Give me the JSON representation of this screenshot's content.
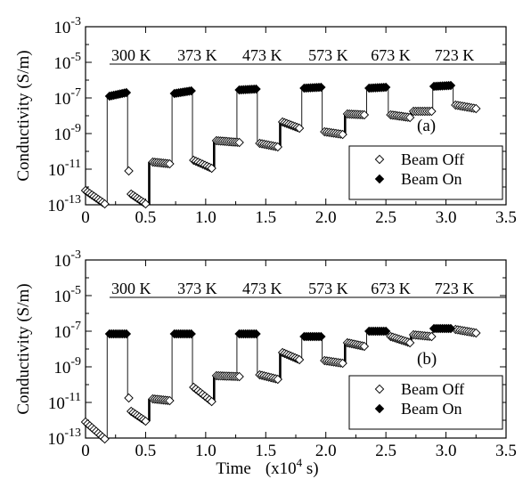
{
  "colors": {
    "axis": "#000000",
    "marker_off_fill": "#ffffff",
    "marker_on_fill": "#000000"
  },
  "chart_data": [
    {
      "type": "scatter",
      "panel_label": "(a)",
      "xlim": [
        0,
        3.5
      ],
      "ylim": [
        -13,
        -3
      ],
      "y_scale": "log",
      "x_ticks": [
        "0",
        "0.5",
        "1.0",
        "1.5",
        "2.0",
        "2.5",
        "3.0",
        "3.5"
      ],
      "y_ticks": [
        {
          "mant": "10",
          "exp": "-3"
        },
        {
          "mant": "10",
          "exp": "-5"
        },
        {
          "mant": "10",
          "exp": "-7"
        },
        {
          "mant": "10",
          "exp": "-9"
        },
        {
          "mant": "10",
          "exp": "-11"
        },
        {
          "mant": "10",
          "exp": "-13"
        }
      ],
      "ylabel": "Conductivity   (S/m)",
      "grid": false,
      "temperature_line": -5.1,
      "temperatures": [
        {
          "label": "300 K",
          "x": 0.38
        },
        {
          "label": "373 K",
          "x": 0.93
        },
        {
          "label": "473 K",
          "x": 1.47
        },
        {
          "label": "573 K",
          "x": 2.02
        },
        {
          "label": "673 K",
          "x": 2.54
        },
        {
          "label": "723 K",
          "x": 3.07
        }
      ],
      "legend": {
        "placement": "bottom-right",
        "entries": [
          {
            "label": "Beam Off",
            "marker": "open-diamond"
          },
          {
            "label": "Beam On",
            "marker": "filled-diamond"
          }
        ]
      },
      "series": [
        {
          "name": "Beam Off",
          "marker": "open-diamond",
          "segments": [
            {
              "x0": 0.0,
              "x1": 0.16,
              "y0": -12.2,
              "y1": -12.95
            },
            {
              "x0": 0.36,
              "x1": 0.36,
              "y0": -11.1,
              "y1": -11.1
            },
            {
              "x0": 0.38,
              "x1": 0.5,
              "y0": -12.4,
              "y1": -12.95
            },
            {
              "x0": 0.56,
              "x1": 0.7,
              "y0": -10.6,
              "y1": -10.7
            },
            {
              "x0": 0.9,
              "x1": 1.05,
              "y0": -10.5,
              "y1": -10.95
            },
            {
              "x0": 1.09,
              "x1": 1.28,
              "y0": -9.4,
              "y1": -9.5
            },
            {
              "x0": 1.45,
              "x1": 1.6,
              "y0": -9.55,
              "y1": -9.75
            },
            {
              "x0": 1.64,
              "x1": 1.78,
              "y0": -8.35,
              "y1": -8.7
            },
            {
              "x0": 1.99,
              "x1": 2.14,
              "y0": -8.9,
              "y1": -9.05
            },
            {
              "x0": 2.18,
              "x1": 2.32,
              "y0": -7.9,
              "y1": -7.95
            },
            {
              "x0": 2.54,
              "x1": 2.7,
              "y0": -7.95,
              "y1": -8.1
            },
            {
              "x0": 2.73,
              "x1": 2.88,
              "y0": -7.75,
              "y1": -7.75
            },
            {
              "x0": 3.08,
              "x1": 3.25,
              "y0": -7.4,
              "y1": -7.6
            }
          ]
        },
        {
          "name": "Beam On",
          "marker": "filled-diamond",
          "segments": [
            {
              "x0": 0.2,
              "x1": 0.34,
              "y0": -6.9,
              "y1": -6.7
            },
            {
              "x0": 0.74,
              "x1": 0.88,
              "y0": -6.75,
              "y1": -6.6
            },
            {
              "x0": 1.28,
              "x1": 1.42,
              "y0": -6.55,
              "y1": -6.5
            },
            {
              "x0": 1.82,
              "x1": 1.96,
              "y0": -6.45,
              "y1": -6.4
            },
            {
              "x0": 2.36,
              "x1": 2.5,
              "y0": -6.45,
              "y1": -6.4
            },
            {
              "x0": 2.9,
              "x1": 3.04,
              "y0": -6.35,
              "y1": -6.3
            }
          ]
        }
      ],
      "connectors": [
        {
          "x": 0.18,
          "y0": -13.0,
          "y1": -6.9,
          "w": 0.9
        },
        {
          "x": 0.35,
          "y0": -6.7,
          "y1": -11.1,
          "w": 0.9
        },
        {
          "x": 0.53,
          "y0": -13.0,
          "y1": -10.6,
          "w": 2.6
        },
        {
          "x": 0.72,
          "y0": -10.7,
          "y1": -6.75,
          "w": 0.9
        },
        {
          "x": 0.89,
          "y0": -6.6,
          "y1": -10.5,
          "w": 0.9
        },
        {
          "x": 1.07,
          "y0": -11.0,
          "y1": -9.4,
          "w": 2.6
        },
        {
          "x": 1.26,
          "y0": -9.5,
          "y1": -6.55,
          "w": 0.9
        },
        {
          "x": 1.43,
          "y0": -6.5,
          "y1": -9.55,
          "w": 0.9
        },
        {
          "x": 1.62,
          "y0": -9.75,
          "y1": -8.35,
          "w": 2.6
        },
        {
          "x": 1.8,
          "y0": -8.7,
          "y1": -6.45,
          "w": 0.9
        },
        {
          "x": 1.97,
          "y0": -6.4,
          "y1": -8.9,
          "w": 0.9
        },
        {
          "x": 2.16,
          "y0": -9.05,
          "y1": -7.9,
          "w": 2.6
        },
        {
          "x": 2.34,
          "y0": -7.95,
          "y1": -6.45,
          "w": 0.9
        },
        {
          "x": 2.52,
          "y0": -6.4,
          "y1": -7.95,
          "w": 0.9
        },
        {
          "x": 2.71,
          "y0": -8.1,
          "y1": -7.75,
          "w": 2.6
        },
        {
          "x": 2.89,
          "y0": -7.75,
          "y1": -6.35,
          "w": 0.9
        },
        {
          "x": 3.06,
          "y0": -6.3,
          "y1": -7.4,
          "w": 0.9
        }
      ]
    },
    {
      "type": "scatter",
      "panel_label": "(b)",
      "xlim": [
        0,
        3.5
      ],
      "ylim": [
        -13,
        -3
      ],
      "y_scale": "log",
      "x_ticks": [
        "0",
        "0.5",
        "1.0",
        "1.5",
        "2.0",
        "2.5",
        "3.0",
        "3.5"
      ],
      "y_ticks": [
        {
          "mant": "10",
          "exp": "-3"
        },
        {
          "mant": "10",
          "exp": "-5"
        },
        {
          "mant": "10",
          "exp": "-7"
        },
        {
          "mant": "10",
          "exp": "-9"
        },
        {
          "mant": "10",
          "exp": "-11"
        },
        {
          "mant": "10",
          "exp": "-13"
        }
      ],
      "ylabel": "Conductivity   (S/m)",
      "xlabel": "Time",
      "xlabel_unit": "(x10",
      "xlabel_unit_exp": "4",
      "xlabel_unit_end": " s)",
      "grid": false,
      "temperature_line": -5.1,
      "temperatures": [
        {
          "label": "300 K",
          "x": 0.38
        },
        {
          "label": "373 K",
          "x": 0.93
        },
        {
          "label": "473 K",
          "x": 1.47
        },
        {
          "label": "573 K",
          "x": 2.02
        },
        {
          "label": "673 K",
          "x": 2.54
        },
        {
          "label": "723 K",
          "x": 3.07
        }
      ],
      "legend": {
        "placement": "bottom-right",
        "entries": [
          {
            "label": "Beam Off",
            "marker": "open-diamond"
          },
          {
            "label": "Beam On",
            "marker": "filled-diamond"
          }
        ]
      },
      "series": [
        {
          "name": "Beam Off",
          "marker": "open-diamond",
          "segments": [
            {
              "x0": 0.0,
              "x1": 0.16,
              "y0": -12.1,
              "y1": -13.05
            },
            {
              "x0": 0.36,
              "x1": 0.36,
              "y0": -10.75,
              "y1": -10.75
            },
            {
              "x0": 0.38,
              "x1": 0.5,
              "y0": -11.5,
              "y1": -12.05
            },
            {
              "x0": 0.56,
              "x1": 0.7,
              "y0": -10.8,
              "y1": -10.9
            },
            {
              "x0": 0.9,
              "x1": 1.05,
              "y0": -10.15,
              "y1": -10.95
            },
            {
              "x0": 1.09,
              "x1": 1.28,
              "y0": -9.5,
              "y1": -9.55
            },
            {
              "x0": 1.45,
              "x1": 1.6,
              "y0": -9.45,
              "y1": -9.7
            },
            {
              "x0": 1.64,
              "x1": 1.78,
              "y0": -8.2,
              "y1": -8.6
            },
            {
              "x0": 1.99,
              "x1": 2.14,
              "y0": -8.65,
              "y1": -8.8
            },
            {
              "x0": 2.18,
              "x1": 2.32,
              "y0": -7.65,
              "y1": -7.85
            },
            {
              "x0": 2.54,
              "x1": 2.7,
              "y0": -7.3,
              "y1": -7.65
            },
            {
              "x0": 2.73,
              "x1": 2.88,
              "y0": -7.2,
              "y1": -7.3
            },
            {
              "x0": 3.08,
              "x1": 3.25,
              "y0": -6.9,
              "y1": -7.1
            }
          ]
        },
        {
          "name": "Beam On",
          "marker": "filled-diamond",
          "segments": [
            {
              "x0": 0.2,
              "x1": 0.34,
              "y0": -7.15,
              "y1": -7.15
            },
            {
              "x0": 0.74,
              "x1": 0.88,
              "y0": -7.15,
              "y1": -7.15
            },
            {
              "x0": 1.28,
              "x1": 1.42,
              "y0": -7.15,
              "y1": -7.15
            },
            {
              "x0": 1.82,
              "x1": 1.96,
              "y0": -7.3,
              "y1": -7.3
            },
            {
              "x0": 2.36,
              "x1": 2.5,
              "y0": -7.0,
              "y1": -7.0
            },
            {
              "x0": 2.9,
              "x1": 3.04,
              "y0": -6.85,
              "y1": -6.85
            }
          ]
        }
      ],
      "connectors": [
        {
          "x": 0.18,
          "y0": -13.05,
          "y1": -7.15,
          "w": 0.9
        },
        {
          "x": 0.35,
          "y0": -7.15,
          "y1": -10.75,
          "w": 0.9
        },
        {
          "x": 0.53,
          "y0": -12.05,
          "y1": -10.8,
          "w": 2.6
        },
        {
          "x": 0.72,
          "y0": -10.9,
          "y1": -7.15,
          "w": 0.9
        },
        {
          "x": 0.89,
          "y0": -7.15,
          "y1": -10.15,
          "w": 0.9
        },
        {
          "x": 1.07,
          "y0": -10.95,
          "y1": -9.5,
          "w": 2.6
        },
        {
          "x": 1.26,
          "y0": -9.55,
          "y1": -7.15,
          "w": 0.9
        },
        {
          "x": 1.43,
          "y0": -7.15,
          "y1": -9.45,
          "w": 0.9
        },
        {
          "x": 1.62,
          "y0": -9.7,
          "y1": -8.2,
          "w": 2.6
        },
        {
          "x": 1.8,
          "y0": -8.6,
          "y1": -7.3,
          "w": 0.9
        },
        {
          "x": 1.97,
          "y0": -7.3,
          "y1": -8.65,
          "w": 0.9
        },
        {
          "x": 2.16,
          "y0": -8.8,
          "y1": -7.65,
          "w": 2.6
        },
        {
          "x": 2.34,
          "y0": -7.85,
          "y1": -7.0,
          "w": 0.9
        },
        {
          "x": 2.52,
          "y0": -7.0,
          "y1": -7.3,
          "w": 0.9
        },
        {
          "x": 2.71,
          "y0": -7.65,
          "y1": -7.2,
          "w": 2.6
        },
        {
          "x": 2.89,
          "y0": -7.3,
          "y1": -6.85,
          "w": 0.9
        },
        {
          "x": 3.06,
          "y0": -6.85,
          "y1": -6.9,
          "w": 0.9
        }
      ]
    }
  ]
}
